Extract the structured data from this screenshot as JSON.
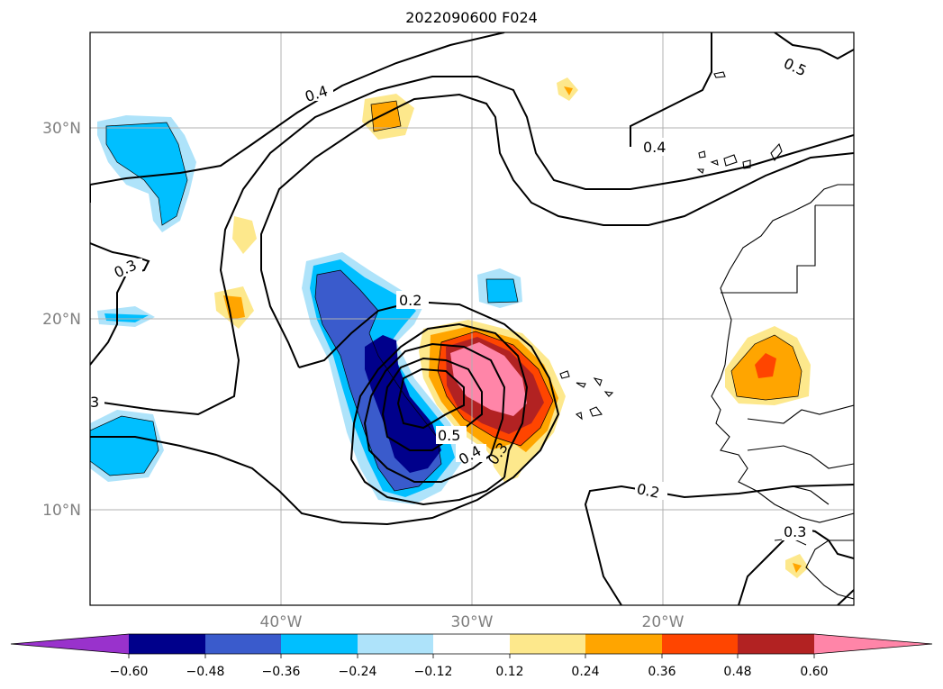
{
  "title": "2022090600 F024",
  "map": {
    "lat_labels": [
      "30°N",
      "20°N",
      "10°N"
    ],
    "lon_labels": [
      "40°W",
      "30°W",
      "20°W"
    ],
    "contour_labels": [
      "0.4",
      "0.5",
      "0.4",
      "0.3",
      "0.2",
      "3",
      "0.5",
      "0.4",
      "0.3",
      "0.2",
      "0.3"
    ]
  },
  "colorbar": {
    "colors": [
      "#9932cc",
      "#00008b",
      "#3a5bcc",
      "#00bfff",
      "#aee3fa",
      "#ffffff",
      "#fde88c",
      "#ffa500",
      "#ff4500",
      "#b22222",
      "#ff85a8"
    ],
    "tick_labels": [
      "−0.60",
      "−0.48",
      "−0.36",
      "−0.24",
      "−0.12",
      "0.12",
      "0.24",
      "0.36",
      "0.48",
      "0.60"
    ]
  }
}
